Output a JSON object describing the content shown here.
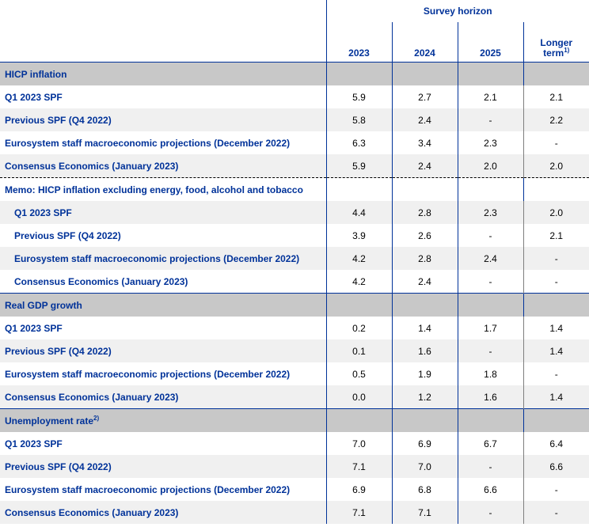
{
  "header": {
    "survey_horizon": "Survey horizon",
    "columns": [
      "2023",
      "2024",
      "2025"
    ],
    "longer_term_line1": "Longer",
    "longer_term_line2": "term",
    "longer_term_note": "1)"
  },
  "sections": [
    {
      "title": "HICP inflation",
      "note": "",
      "rows": [
        {
          "label": "Q1 2023 SPF",
          "values": [
            "5.9",
            "2.7",
            "2.1",
            "2.1"
          ]
        },
        {
          "label": "Previous SPF (Q4 2022)",
          "values": [
            "5.8",
            "2.4",
            "-",
            "2.2"
          ]
        },
        {
          "label": "Eurosystem staff macroeconomic projections (December 2022)",
          "values": [
            "6.3",
            "3.4",
            "2.3",
            "-"
          ]
        },
        {
          "label": "Consensus Economics (January 2023)",
          "values": [
            "5.9",
            "2.4",
            "2.0",
            "2.0"
          ]
        }
      ],
      "memo": {
        "title": "Memo: HICP inflation excluding energy, food, alcohol and tobacco",
        "rows": [
          {
            "label": "Q1 2023 SPF",
            "values": [
              "4.4",
              "2.8",
              "2.3",
              "2.0"
            ]
          },
          {
            "label": "Previous SPF (Q4 2022)",
            "values": [
              "3.9",
              "2.6",
              "-",
              "2.1"
            ]
          },
          {
            "label": "Eurosystem staff macroeconomic projections (December 2022)",
            "values": [
              "4.2",
              "2.8",
              "2.4",
              "-"
            ]
          },
          {
            "label": "Consensus Economics (January 2023)",
            "values": [
              "4.2",
              "2.4",
              "-",
              "-"
            ]
          }
        ]
      }
    },
    {
      "title": "Real GDP growth",
      "note": "",
      "rows": [
        {
          "label": "Q1 2023 SPF",
          "values": [
            "0.2",
            "1.4",
            "1.7",
            "1.4"
          ]
        },
        {
          "label": "Previous SPF (Q4 2022)",
          "values": [
            "0.1",
            "1.6",
            "-",
            "1.4"
          ]
        },
        {
          "label": "Eurosystem staff macroeconomic projections (December 2022)",
          "values": [
            "0.5",
            "1.9",
            "1.8",
            "-"
          ]
        },
        {
          "label": "Consensus Economics (January 2023)",
          "values": [
            "0.0",
            "1.2",
            "1.6",
            "1.4"
          ]
        }
      ]
    },
    {
      "title": "Unemployment rate",
      "note": "2)",
      "rows": [
        {
          "label": "Q1 2023 SPF",
          "values": [
            "7.0",
            "6.9",
            "6.7",
            "6.4"
          ]
        },
        {
          "label": "Previous SPF (Q4 2022)",
          "values": [
            "7.1",
            "7.0",
            "-",
            "6.6"
          ]
        },
        {
          "label": "Eurosystem staff macroeconomic projections (December 2022)",
          "values": [
            "6.9",
            "6.8",
            "6.6",
            "-"
          ]
        },
        {
          "label": "Consensus Economics (January 2023)",
          "values": [
            "7.1",
            "7.1",
            "-",
            "-"
          ]
        }
      ]
    }
  ]
}
